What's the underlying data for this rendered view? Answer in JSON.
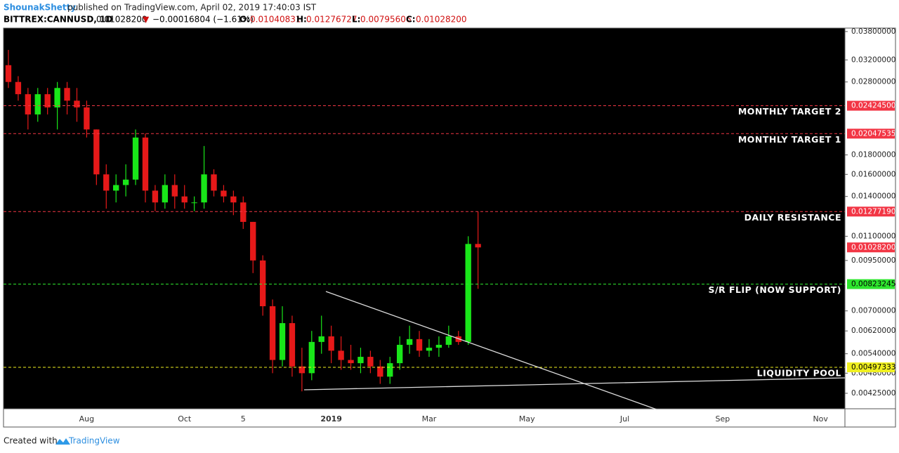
{
  "chart_data": {
    "type": "candlestick",
    "publisher": "ShounakShetty",
    "published_text": "published on TradingView.com, April 02, 2019 17:40:03 IST",
    "symbol": "BITTREX:CANNUSD, 1D",
    "price": "0.01028200",
    "change_arrow": "▼",
    "change": "−0.00016804 (−1.61%)",
    "ohlc_labels": [
      "O:",
      "H:",
      "L:",
      "C:"
    ],
    "ohlc_values": [
      "0.01040831",
      "0.01276727",
      "0.00795606",
      "0.01028200"
    ],
    "categories": [
      null,
      null,
      null,
      null,
      null,
      null,
      null,
      null,
      "Aug",
      null,
      null,
      null,
      null,
      null,
      null,
      null,
      null,
      null,
      "Oct",
      null,
      null,
      null,
      null,
      null,
      "5",
      null,
      null,
      null,
      null,
      null,
      null,
      null,
      null,
      "2019",
      null,
      null,
      null,
      null,
      null,
      null,
      null,
      null,
      null,
      "Mar",
      null,
      null,
      null,
      null,
      null,
      null,
      null,
      null,
      null,
      "May",
      null,
      null,
      null,
      null,
      null,
      null,
      null,
      null,
      null,
      "Jul",
      null,
      null,
      null,
      null,
      null,
      null,
      null,
      null,
      null,
      "Sep",
      null,
      null,
      null,
      null,
      null,
      null,
      null,
      null,
      null,
      "Nov",
      null,
      null
    ],
    "open": [
      0.031,
      0.028,
      0.026,
      0.023,
      0.026,
      0.024,
      0.027,
      0.025,
      0.024,
      0.021,
      0.016,
      0.0145,
      0.015,
      0.0155,
      0.02,
      0.0145,
      0.0135,
      0.015,
      0.014,
      0.0135,
      0.0135,
      0.016,
      0.0145,
      0.014,
      0.0135,
      0.012,
      0.0095,
      0.0072,
      0.0052,
      0.0065,
      0.005,
      0.0048,
      0.0058,
      0.006,
      0.0055,
      0.0052,
      0.0051,
      0.0053,
      0.005,
      0.0047,
      0.0051,
      0.0057,
      0.0059,
      0.0055,
      0.0056,
      0.0057,
      0.006,
      0.0058,
      0.0105,
      null,
      null,
      null,
      null,
      null,
      null,
      null,
      null,
      null,
      null,
      null,
      null,
      null,
      null,
      null,
      null,
      null,
      null,
      null,
      null,
      null,
      null,
      null,
      null,
      null,
      null,
      null,
      null,
      null,
      null,
      null,
      null,
      null,
      null,
      null,
      null,
      null
    ],
    "high": [
      0.034,
      0.029,
      0.027,
      0.027,
      0.027,
      0.028,
      0.028,
      0.027,
      0.025,
      0.021,
      0.017,
      0.016,
      0.017,
      0.021,
      0.0205,
      0.015,
      0.016,
      0.016,
      0.015,
      0.014,
      0.019,
      0.0165,
      0.015,
      0.0145,
      0.014,
      0.012,
      0.0098,
      0.0075,
      0.0072,
      0.0068,
      0.0056,
      0.0062,
      0.0068,
      0.0064,
      0.006,
      0.0057,
      0.0056,
      0.0055,
      0.0052,
      0.0053,
      0.006,
      0.0064,
      0.0062,
      0.0059,
      0.006,
      0.0064,
      0.0062,
      0.011,
      0.01277,
      null,
      null,
      null,
      null,
      null,
      null,
      null,
      null,
      null,
      null,
      null,
      null,
      null,
      null,
      null,
      null,
      null,
      null,
      null,
      null,
      null,
      null,
      null,
      null,
      null,
      null,
      null,
      null,
      null,
      null,
      null,
      null,
      null,
      null,
      null,
      null,
      null
    ],
    "low": [
      0.027,
      0.025,
      0.021,
      0.022,
      0.023,
      0.021,
      0.023,
      0.022,
      0.02,
      0.015,
      0.013,
      0.0135,
      0.014,
      0.015,
      0.0135,
      0.0128,
      0.013,
      0.013,
      0.013,
      0.0128,
      0.013,
      0.014,
      0.0135,
      0.0125,
      0.0115,
      0.0088,
      0.0068,
      0.0048,
      0.005,
      0.0047,
      0.0043,
      0.0046,
      0.0054,
      0.0051,
      0.0049,
      0.0049,
      0.0048,
      0.0048,
      0.0045,
      0.0045,
      0.0049,
      0.0054,
      0.0053,
      0.0053,
      0.0053,
      0.0056,
      0.0057,
      0.0057,
      0.008,
      null,
      null,
      null,
      null,
      null,
      null,
      null,
      null,
      null,
      null,
      null,
      null,
      null,
      null,
      null,
      null,
      null,
      null,
      null,
      null,
      null,
      null,
      null,
      null,
      null,
      null,
      null,
      null,
      null,
      null,
      null,
      null,
      null,
      null,
      null,
      null,
      null
    ],
    "close": [
      0.028,
      0.026,
      0.023,
      0.026,
      0.024,
      0.027,
      0.025,
      0.024,
      0.021,
      0.016,
      0.0145,
      0.015,
      0.0155,
      0.02,
      0.0145,
      0.0135,
      0.015,
      0.014,
      0.0135,
      0.0135,
      0.016,
      0.0145,
      0.014,
      0.0135,
      0.012,
      0.0095,
      0.0072,
      0.0052,
      0.0065,
      0.005,
      0.0048,
      0.0058,
      0.006,
      0.0055,
      0.0052,
      0.0051,
      0.0053,
      0.005,
      0.0047,
      0.0051,
      0.0057,
      0.0059,
      0.0055,
      0.0056,
      0.0057,
      0.006,
      0.0058,
      0.0105,
      0.01028,
      null,
      null,
      null,
      null,
      null,
      null,
      null,
      null,
      null,
      null,
      null,
      null,
      null,
      null,
      null,
      null,
      null,
      null,
      null,
      null,
      null,
      null,
      null,
      null,
      null,
      null,
      null,
      null,
      null,
      null,
      null,
      null,
      null,
      null,
      null,
      null,
      null
    ],
    "up_color": "#19e619",
    "down_color": "#e61919",
    "log_scale": true,
    "grid": false,
    "ylim": [
      0.00387,
      0.0388
    ],
    "yticks": [
      {
        "value": 0.038,
        "label": "0.03800000"
      },
      {
        "value": 0.032,
        "label": "0.03200000"
      },
      {
        "value": 0.028,
        "label": "0.02800000"
      },
      {
        "value": 0.018,
        "label": "0.01800000"
      },
      {
        "value": 0.016,
        "label": "0.01600000"
      },
      {
        "value": 0.014,
        "label": "0.01400000"
      },
      {
        "value": 0.011,
        "label": "0.01100000"
      },
      {
        "value": 0.0095,
        "label": "0.00950000"
      },
      {
        "value": 0.007,
        "label": "0.00700000"
      },
      {
        "value": 0.0062,
        "label": "0.00620000"
      },
      {
        "value": 0.0054,
        "label": "0.00540000"
      },
      {
        "value": 0.0048,
        "label": "0.00480000"
      },
      {
        "value": 0.00425,
        "label": "0.00425000"
      }
    ],
    "levels": [
      {
        "name": "MONTHLY TARGET 2",
        "value": 0.024245,
        "value_label": "0.02424500",
        "color": "#f23645"
      },
      {
        "name": "MONTHLY TARGET 1",
        "value": 0.02047535,
        "value_label": "0.02047535",
        "color": "#f23645"
      },
      {
        "name": "DAILY RESISTANCE",
        "value": 0.0127719,
        "value_label": "0.01277190",
        "color": "#f23645"
      },
      {
        "name": "S/R FLIP (NOW SUPPORT)",
        "value": 0.00823245,
        "value_label": "0.00823245",
        "color": "#2ee62e"
      },
      {
        "name": "LIQUIDITY POOL",
        "value": 0.00497333,
        "value_label": "0.00497333",
        "color": "#f0f020"
      }
    ],
    "last_price": {
      "value": 0.010282,
      "label": "0.01028200",
      "color": "#f23645"
    }
  },
  "footer": {
    "text": "Created with",
    "brand": "TradingView"
  }
}
